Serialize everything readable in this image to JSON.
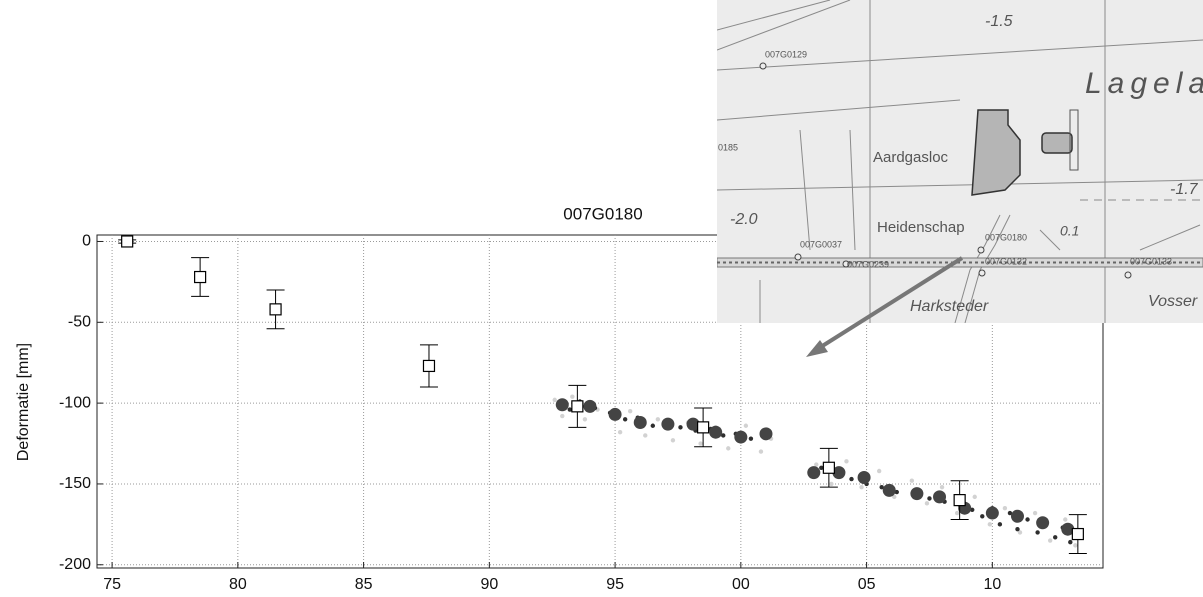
{
  "chart_data": {
    "type": "scatter",
    "title": "007G0180",
    "ylabel": "Deformatie [mm]",
    "xlim": [
      1974.4,
      2014.4
    ],
    "ylim": [
      -202,
      4
    ],
    "xticks": [
      {
        "value": 1975,
        "label": "75"
      },
      {
        "value": 1980,
        "label": "80"
      },
      {
        "value": 1985,
        "label": "85"
      },
      {
        "value": 1990,
        "label": "90"
      },
      {
        "value": 1995,
        "label": "95"
      },
      {
        "value": 2000,
        "label": "00"
      },
      {
        "value": 2005,
        "label": "05"
      },
      {
        "value": 2010,
        "label": "10"
      }
    ],
    "yticks": [
      0,
      -50,
      -100,
      -150,
      -200
    ],
    "grid": true,
    "series": [
      {
        "color": "#d2d2d2",
        "marker": "dot",
        "x": [
          1992.6,
          1992.9,
          1993.3,
          1993.8,
          1994.3,
          1995.2,
          1995.6,
          1996.2,
          1996.7,
          1997.3,
          1997.9,
          1998.4,
          1999.0,
          1999.5,
          2000.2,
          2000.8,
          2001.2,
          2003.0,
          2003.6,
          2004.2,
          2004.8,
          2005.5,
          2006.1,
          2006.8,
          2007.4,
          2008.0,
          2008.6,
          2009.3,
          2009.9,
          2010.5,
          2011.1,
          2011.7,
          2012.3,
          2012.9,
          2013.3
        ],
        "values": [
          -98,
          -108,
          -96,
          -110,
          -104,
          -118,
          -105,
          -120,
          -110,
          -123,
          -112,
          -125,
          -115,
          -128,
          -114,
          -130,
          -122,
          -138,
          -150,
          -136,
          -152,
          -142,
          -158,
          -148,
          -162,
          -152,
          -168,
          -158,
          -175,
          -165,
          -180,
          -168,
          -185,
          -172,
          -188
        ]
      },
      {
        "color": "#2e2e2e",
        "marker": "dot",
        "x": [
          1992.8,
          1993.2,
          1993.6,
          1994.2,
          1994.8,
          1995.4,
          1995.9,
          1996.5,
          1997.0,
          1997.6,
          1998.2,
          1998.8,
          1999.3,
          1999.8,
          2000.4,
          2000.9,
          2003.2,
          2003.8,
          2004.4,
          2005.0,
          2005.6,
          2006.2,
          2006.9,
          2007.5,
          2008.1,
          2008.7,
          2009.2,
          2009.6,
          2010.0,
          2010.3,
          2010.7,
          2011.0,
          2011.4,
          2011.8,
          2012.1,
          2012.5,
          2012.8,
          2013.1,
          2013.4
        ],
        "values": [
          -100,
          -104,
          -99,
          -103,
          -106,
          -110,
          -109,
          -114,
          -111,
          -115,
          -117,
          -116,
          -120,
          -119,
          -122,
          -120,
          -140,
          -145,
          -147,
          -150,
          -152,
          -155,
          -156,
          -159,
          -161,
          -163,
          -166,
          -170,
          -165,
          -175,
          -168,
          -178,
          -172,
          -180,
          -174,
          -183,
          -177,
          -186,
          -179
        ]
      },
      {
        "color": "#444444",
        "marker": "circle",
        "x": [
          1992.9,
          1994.0,
          1995.0,
          1996.0,
          1997.1,
          1998.1,
          1999.0,
          2000.0,
          2001.0,
          2002.9,
          2003.9,
          2004.9,
          2005.9,
          2007.0,
          2007.9,
          2008.9,
          2010.0,
          2011.0,
          2012.0,
          2013.0
        ],
        "values": [
          -101,
          -102,
          -107,
          -112,
          -113,
          -113,
          -118,
          -121,
          -119,
          -143,
          -143,
          -146,
          -154,
          -156,
          -158,
          -165,
          -168,
          -170,
          -174,
          -178
        ]
      },
      {
        "color": "#000000",
        "marker": "square",
        "x": [
          1975.6,
          1978.5,
          1981.5,
          1987.6,
          1993.5,
          1998.5,
          2003.5,
          2008.7,
          2013.4
        ],
        "values": [
          0,
          -22,
          -42,
          -77,
          -102,
          -115,
          -140,
          -160,
          -181
        ],
        "errors": [
          1,
          12,
          12,
          13,
          13,
          12,
          12,
          12,
          12
        ]
      }
    ]
  },
  "map": {
    "labels": [
      "-1.5",
      "007G0129",
      "Lagela",
      "0185",
      "Aardgasloc",
      "-1.7",
      "-2.0",
      "Heidenschap",
      "007G0180",
      "0.1",
      "007G0037",
      "007G0239",
      "007G0132",
      "007G0133",
      "Harksteder",
      "Vosser"
    ]
  }
}
